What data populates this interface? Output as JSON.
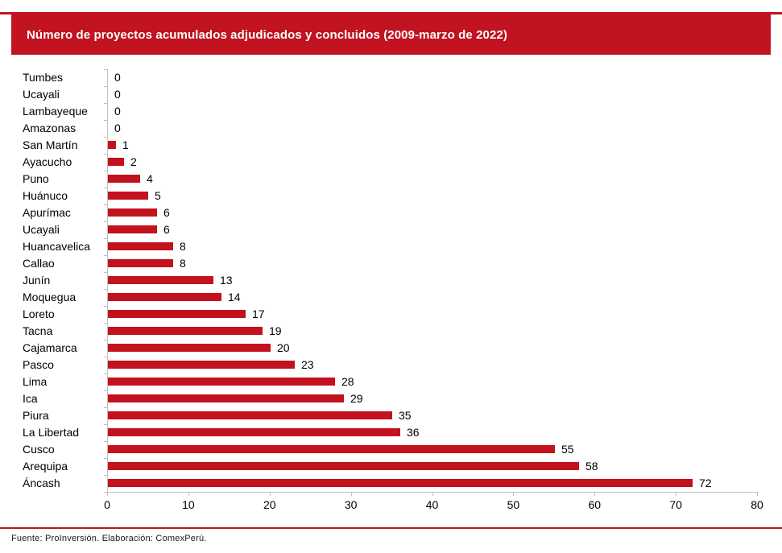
{
  "banner": {
    "title": "Número de proyectos acumulados adjudicados y concluidos (2009-marzo de 2022)"
  },
  "footer": {
    "text": "Fuente: ProInversión. Elaboración: ComexPerú."
  },
  "colors": {
    "accent_red": "#c11320",
    "bar_red": "#c2121d",
    "axis_gray": "#c0c0c0",
    "text_black": "#000000"
  },
  "chart_data": {
    "type": "bar",
    "orientation": "horizontal",
    "title": "Número de proyectos acumulados adjudicados y concluidos (2009-marzo de 2022)",
    "xlabel": "",
    "ylabel": "",
    "xlim": [
      0,
      80
    ],
    "xticks": [
      0,
      10,
      20,
      30,
      40,
      50,
      60,
      70,
      80
    ],
    "grid": false,
    "value_labels": true,
    "categories": [
      "Tumbes",
      "Ucayali",
      "Lambayeque",
      "Amazonas",
      "San Martín",
      "Ayacucho",
      "Puno",
      "Huánuco",
      "Apurímac",
      "Ucayali",
      "Huancavelica",
      "Callao",
      "Junín",
      "Moquegua",
      "Loreto",
      "Tacna",
      "Cajamarca",
      "Pasco",
      "Lima",
      "Ica",
      "Piura",
      "La Libertad",
      "Cusco",
      "Arequipa",
      "Áncash"
    ],
    "values": [
      0,
      0,
      0,
      0,
      1,
      2,
      4,
      5,
      6,
      6,
      8,
      8,
      13,
      14,
      17,
      19,
      20,
      23,
      28,
      29,
      35,
      36,
      55,
      58,
      72
    ]
  }
}
